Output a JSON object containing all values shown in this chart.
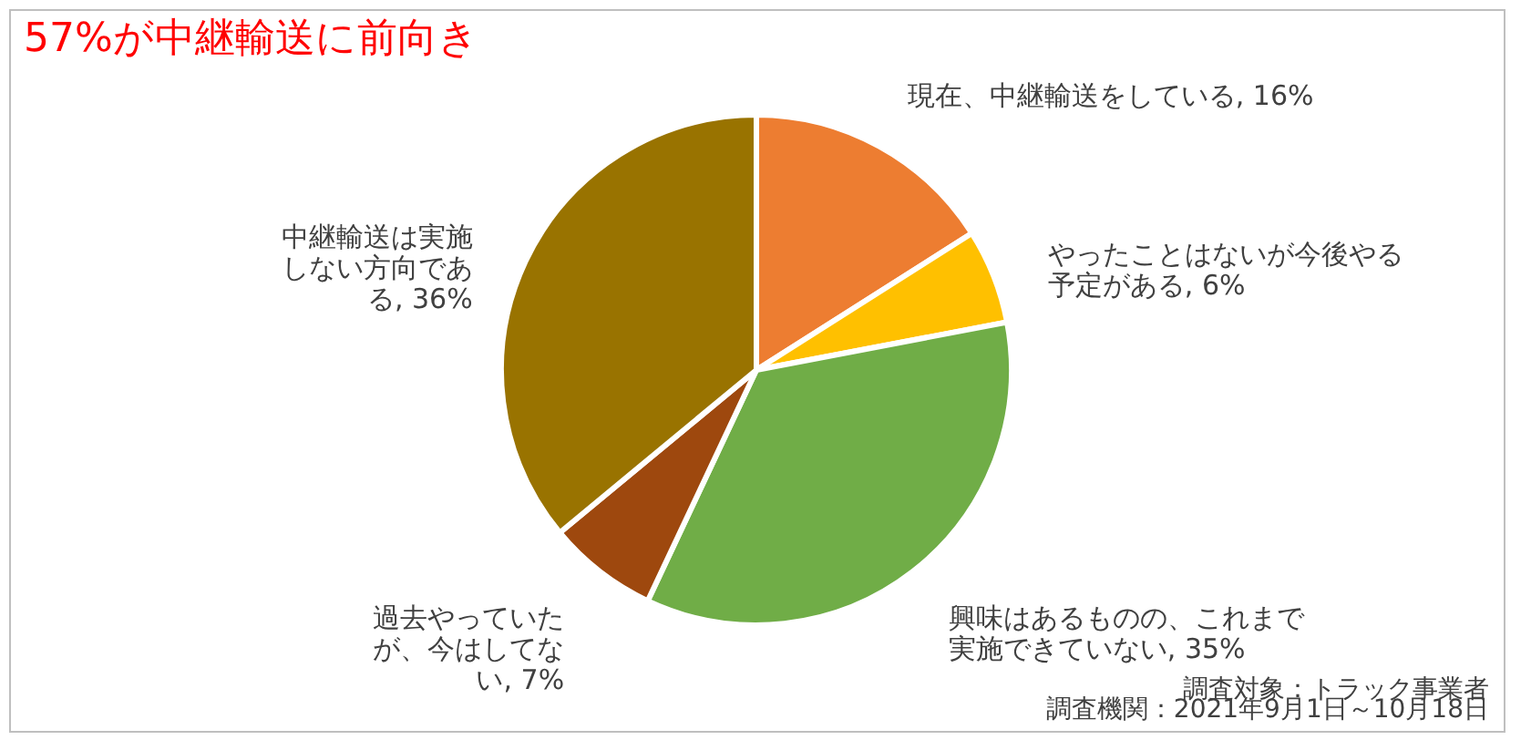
{
  "chart_data": {
    "type": "pie",
    "title": "57%が中継輸送に前向き",
    "categories": [
      "現在、中継輸送をしている",
      "やったことはないが今後やる予定がある",
      "興味はあるものの、これまで実施できていない",
      "過去やっていたが、今はしてない",
      "中継輸送は実施しない方向である"
    ],
    "values": [
      16,
      6,
      35,
      7,
      36
    ],
    "value_labels": [
      "16%",
      "6%",
      "35%",
      "7%",
      "36%"
    ],
    "colors": [
      "#ed7d31",
      "#ffc000",
      "#70ad47",
      "#9e480e",
      "#997300"
    ],
    "annotations": [
      "調査対象：トラック事業者",
      "調査機関：2021年9月1日～10月18日"
    ]
  }
}
